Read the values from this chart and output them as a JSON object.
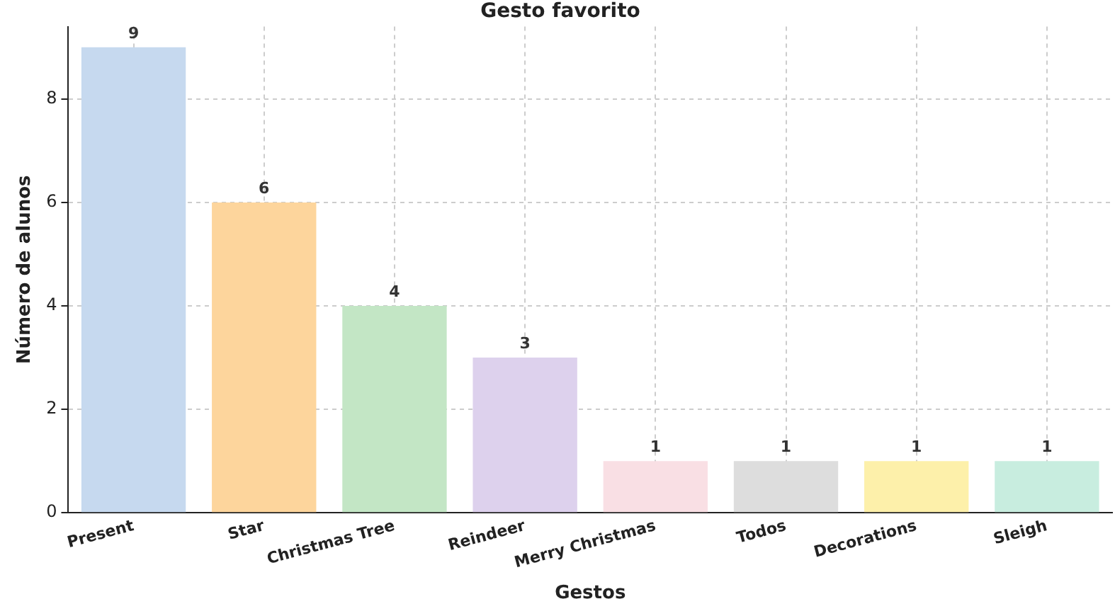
{
  "chart_data": {
    "type": "bar",
    "title": "Gesto favorito",
    "xlabel": "Gestos",
    "ylabel": "Número de alunos",
    "categories": [
      "Present",
      "Star",
      "Christmas Tree",
      "Reindeer",
      "Merry Christmas",
      "Todos",
      "Decorations",
      "Sleigh"
    ],
    "values": [
      9,
      6,
      4,
      3,
      1,
      1,
      1,
      1
    ],
    "colors": [
      "#c6d9ef",
      "#fdd59c",
      "#c3e6c5",
      "#ddd1ed",
      "#f9dfe4",
      "#dddddd",
      "#fdf0aa",
      "#c8eddf"
    ],
    "ylim": [
      0,
      9.4
    ],
    "yticks": [
      0,
      2,
      4,
      6,
      8
    ],
    "grid": true,
    "data_labels": true
  }
}
